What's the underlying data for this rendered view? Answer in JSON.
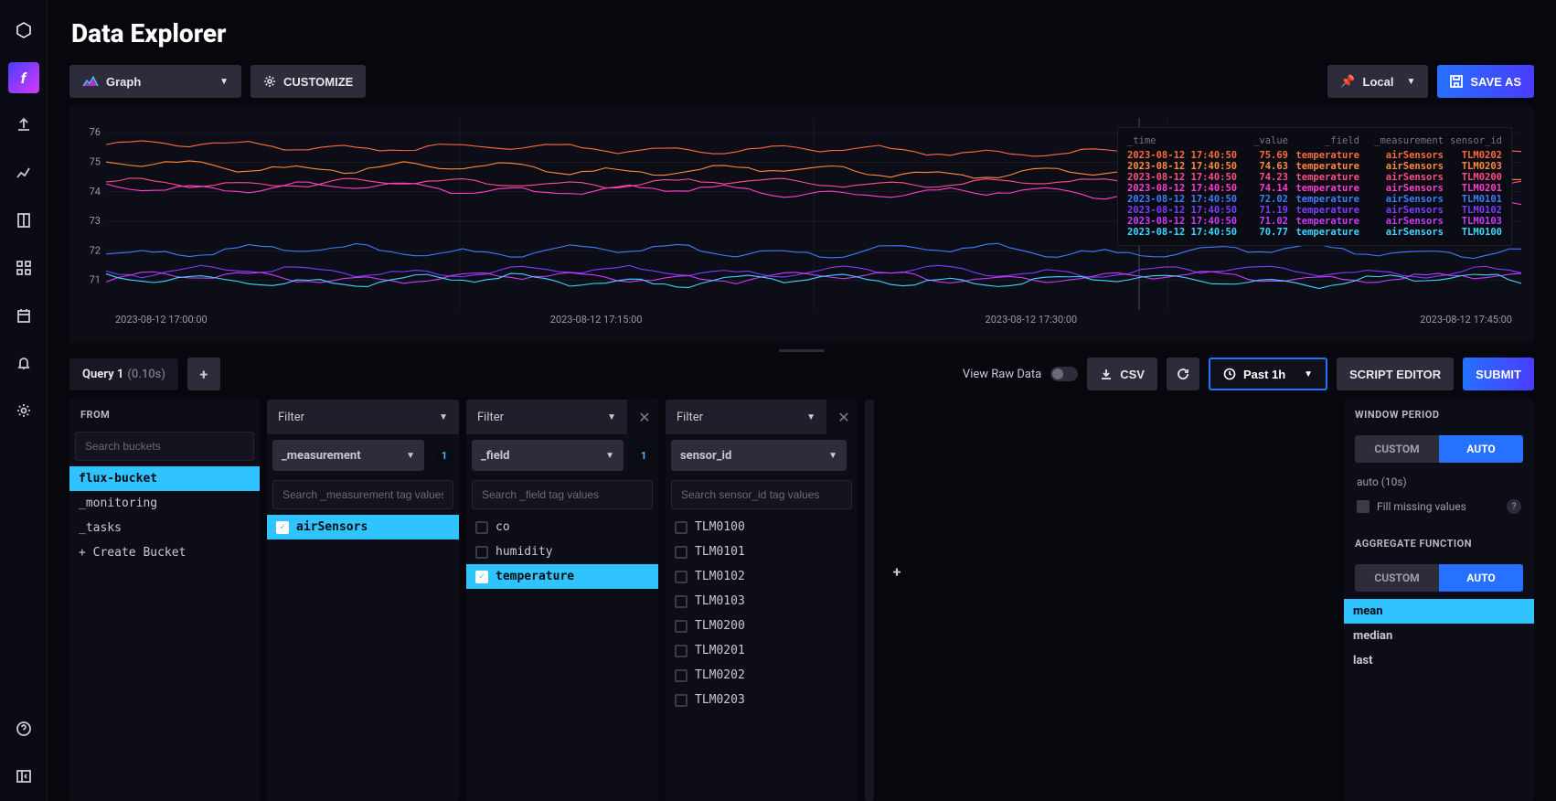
{
  "page": {
    "title": "Data Explorer"
  },
  "toolbar": {
    "viz_type": "Graph",
    "customize": "CUSTOMIZE",
    "timezone": "Local",
    "save_as": "SAVE AS"
  },
  "chart": {
    "type": "line",
    "ylim": [
      70,
      76.5
    ],
    "yticks": [
      71,
      72,
      73,
      74,
      75,
      76
    ],
    "xticks": [
      "2023-08-12 17:00:00",
      "2023-08-12 17:15:00",
      "2023-08-12 17:30:00",
      "2023-08-12 17:45:00"
    ],
    "background_color": "#0d0d18",
    "grid_color": "#262633",
    "line_width": 1.1,
    "series": [
      {
        "id": "TLM0202",
        "color": "#ff6a3d",
        "baseline": 75.6,
        "amp": 0.25
      },
      {
        "id": "TLM0203",
        "color": "#ff8a3d",
        "baseline": 74.9,
        "amp": 0.3
      },
      {
        "id": "TLM0200",
        "color": "#ff4d8a",
        "baseline": 74.3,
        "amp": 0.25
      },
      {
        "id": "TLM0201",
        "color": "#ff3dcf",
        "baseline": 74.2,
        "amp": 0.3
      },
      {
        "id": "TLM0101",
        "color": "#3d7dff",
        "baseline": 72.0,
        "amp": 0.35
      },
      {
        "id": "TLM0102",
        "color": "#7a3dff",
        "baseline": 71.3,
        "amp": 0.3
      },
      {
        "id": "TLM0103",
        "color": "#c93dff",
        "baseline": 71.1,
        "amp": 0.3
      },
      {
        "id": "TLM0100",
        "color": "#3dd6ff",
        "baseline": 71.0,
        "amp": 0.35
      }
    ],
    "legend": {
      "headers": [
        "_time",
        "_value",
        "_field",
        "_measurement",
        "sensor_id"
      ],
      "rows": [
        {
          "color": "#ff6a3d",
          "time": "2023-08-12 17:40:50",
          "value": "75.69",
          "field": "temperature",
          "measurement": "airSensors",
          "sensor": "TLM0202"
        },
        {
          "color": "#ff8a3d",
          "time": "2023-08-12 17:40:50",
          "value": "74.63",
          "field": "temperature",
          "measurement": "airSensors",
          "sensor": "TLM0203"
        },
        {
          "color": "#ff4d8a",
          "time": "2023-08-12 17:40:50",
          "value": "74.23",
          "field": "temperature",
          "measurement": "airSensors",
          "sensor": "TLM0200"
        },
        {
          "color": "#ff3dcf",
          "time": "2023-08-12 17:40:50",
          "value": "74.14",
          "field": "temperature",
          "measurement": "airSensors",
          "sensor": "TLM0201"
        },
        {
          "color": "#3d7dff",
          "time": "2023-08-12 17:40:50",
          "value": "72.02",
          "field": "temperature",
          "measurement": "airSensors",
          "sensor": "TLM0101"
        },
        {
          "color": "#7a3dff",
          "time": "2023-08-12 17:40:50",
          "value": "71.19",
          "field": "temperature",
          "measurement": "airSensors",
          "sensor": "TLM0102"
        },
        {
          "color": "#c93dff",
          "time": "2023-08-12 17:40:50",
          "value": "71.02",
          "field": "temperature",
          "measurement": "airSensors",
          "sensor": "TLM0103"
        },
        {
          "color": "#3dd6ff",
          "time": "2023-08-12 17:40:50",
          "value": "70.77",
          "field": "temperature",
          "measurement": "airSensors",
          "sensor": "TLM0100"
        }
      ]
    }
  },
  "query": {
    "tab_label": "Query 1",
    "tab_time": "(0.10s)",
    "raw_label": "View Raw Data",
    "csv": "CSV",
    "timerange": "Past 1h",
    "script_editor": "SCRIPT EDITOR",
    "submit": "SUBMIT"
  },
  "from": {
    "heading": "FROM",
    "search_placeholder": "Search buckets",
    "items": [
      {
        "label": "flux-bucket",
        "selected": true
      },
      {
        "label": "_monitoring",
        "selected": false
      },
      {
        "label": "_tasks",
        "selected": false
      },
      {
        "label": "+ Create Bucket",
        "selected": false
      }
    ]
  },
  "filters": [
    {
      "head": "Filter",
      "key_select": "_measurement",
      "count": "1",
      "closable": false,
      "search_placeholder": "Search _measurement tag values",
      "items": [
        {
          "label": "airSensors",
          "selected": true
        }
      ]
    },
    {
      "head": "Filter",
      "key_select": "_field",
      "count": "1",
      "closable": true,
      "search_placeholder": "Search _field tag values",
      "items": [
        {
          "label": "co",
          "selected": false
        },
        {
          "label": "humidity",
          "selected": false
        },
        {
          "label": "temperature",
          "selected": true
        }
      ]
    },
    {
      "head": "Filter",
      "key_select": "sensor_id",
      "count": null,
      "closable": true,
      "search_placeholder": "Search sensor_id tag values",
      "items": [
        {
          "label": "TLM0100",
          "selected": false
        },
        {
          "label": "TLM0101",
          "selected": false
        },
        {
          "label": "TLM0102",
          "selected": false
        },
        {
          "label": "TLM0103",
          "selected": false
        },
        {
          "label": "TLM0200",
          "selected": false
        },
        {
          "label": "TLM0201",
          "selected": false
        },
        {
          "label": "TLM0202",
          "selected": false
        },
        {
          "label": "TLM0203",
          "selected": false
        }
      ]
    }
  ],
  "right": {
    "window_heading": "WINDOW PERIOD",
    "custom": "CUSTOM",
    "auto": "AUTO",
    "auto_value": "auto (10s)",
    "fill_label": "Fill missing values",
    "agg_heading": "AGGREGATE FUNCTION",
    "agg_items": [
      {
        "label": "mean",
        "selected": true
      },
      {
        "label": "median",
        "selected": false
      },
      {
        "label": "last",
        "selected": false
      }
    ]
  }
}
